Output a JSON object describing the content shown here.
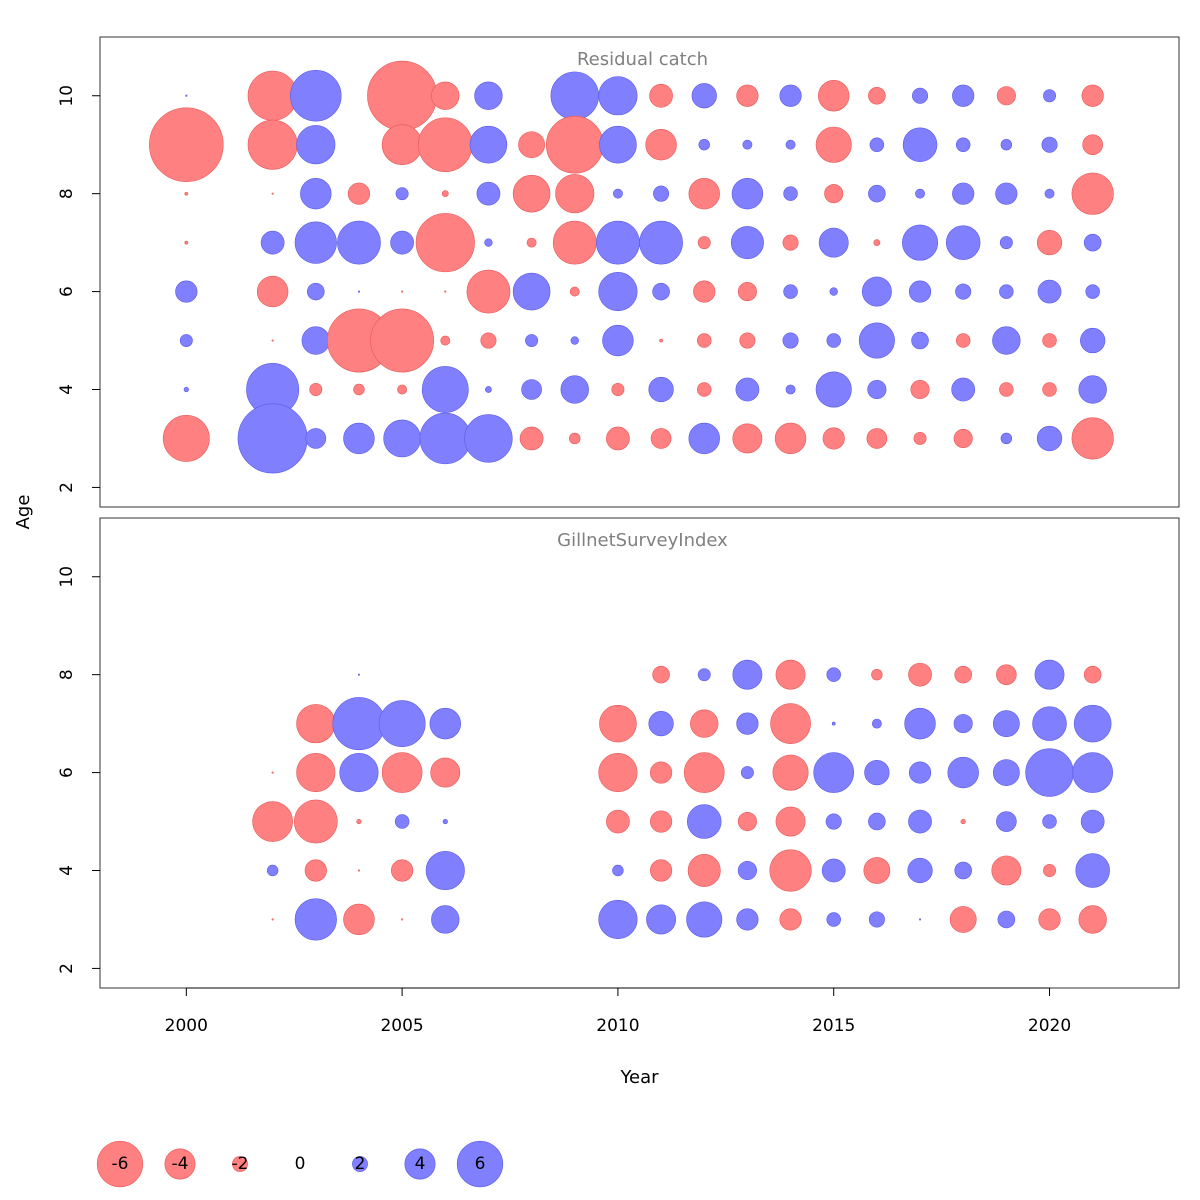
{
  "chart_data": {
    "type": "scatter",
    "subtype": "bubble",
    "xlabel": "Year",
    "ylabel": "Age",
    "xlim": [
      1998,
      2023
    ],
    "x_ticks": [
      2000,
      2005,
      2010,
      2015,
      2020
    ],
    "y_ticks": [
      2,
      4,
      6,
      8,
      10
    ],
    "ylim": [
      1.6,
      11.2
    ],
    "colors": {
      "positive": "#8080ff",
      "negative": "#ff8080",
      "positive_stroke": "#5a5ae6",
      "negative_stroke": "#e65a5a"
    },
    "legend": {
      "placement": "bottom-left",
      "values": [
        -6,
        -4,
        -2,
        0,
        2,
        4,
        6
      ]
    },
    "years": [
      2000,
      2001,
      2002,
      2003,
      2004,
      2005,
      2006,
      2007,
      2008,
      2009,
      2010,
      2011,
      2012,
      2013,
      2014,
      2015,
      2016,
      2017,
      2018,
      2019,
      2020,
      2021
    ],
    "panels": [
      {
        "title": "Residual catch",
        "ages": [
          3,
          4,
          5,
          6,
          7,
          8,
          9,
          10
        ],
        "rows": {
          "10": [
            0.1,
            null,
            -3.2,
            3.3,
            null,
            -4.5,
            -1.8,
            1.8,
            null,
            3.1,
            2.5,
            -1.5,
            1.6,
            -1.4,
            1.4,
            -2.0,
            -1.1,
            1.0,
            1.4,
            -1.2,
            0.8,
            -1.4
          ],
          "9": [
            -4.8,
            null,
            -3.2,
            2.5,
            null,
            -2.6,
            -3.5,
            2.4,
            -1.7,
            -3.7,
            2.4,
            -2.0,
            0.7,
            0.6,
            0.6,
            -2.3,
            0.9,
            2.2,
            0.9,
            0.7,
            1.0,
            -1.3
          ],
          "8": [
            -0.2,
            null,
            -0.1,
            2.0,
            -1.4,
            0.8,
            -0.4,
            1.5,
            -2.4,
            -2.5,
            0.6,
            1.0,
            -2.0,
            2.0,
            0.9,
            -1.2,
            1.1,
            0.6,
            1.4,
            1.4,
            0.6,
            -2.7
          ],
          "7": [
            -0.2,
            null,
            1.5,
            2.7,
            2.8,
            1.5,
            -3.8,
            0.5,
            -0.6,
            -2.8,
            2.8,
            2.8,
            -0.8,
            2.1,
            -1.0,
            1.9,
            -0.4,
            2.3,
            2.2,
            0.8,
            -1.6,
            1.1
          ],
          "6": [
            1.4,
            null,
            -2.0,
            1.1,
            0.1,
            -0.1,
            -0.1,
            -2.8,
            2.4,
            -0.6,
            2.5,
            1.1,
            -1.4,
            -1.2,
            0.9,
            0.5,
            1.9,
            1.4,
            1.0,
            0.9,
            1.5,
            0.9
          ],
          "5": [
            0.8,
            null,
            -0.1,
            1.8,
            -4.1,
            -4.1,
            -0.6,
            -1.0,
            0.8,
            0.5,
            2.0,
            -0.2,
            -0.9,
            -1.0,
            1.0,
            0.9,
            2.3,
            1.1,
            -0.9,
            1.8,
            -0.9,
            1.6
          ],
          "4": [
            0.3,
            null,
            3.4,
            -0.8,
            -0.7,
            -0.6,
            3.0,
            0.4,
            1.3,
            1.8,
            -0.8,
            1.6,
            -0.9,
            1.5,
            0.6,
            2.3,
            1.2,
            -1.2,
            1.5,
            -0.9,
            -0.9,
            1.8
          ],
          "3": [
            -3.0,
            null,
            4.5,
            1.3,
            2.0,
            2.4,
            3.3,
            3.1,
            -1.5,
            -0.7,
            -1.5,
            -1.3,
            2.0,
            -1.9,
            -2.0,
            -1.4,
            -1.3,
            -0.8,
            -1.2,
            0.7,
            1.6,
            -2.7
          ]
        }
      },
      {
        "title": "GillnetSurveyIndex",
        "ages": [
          3,
          4,
          5,
          6,
          7,
          8
        ],
        "rows": {
          "8": [
            null,
            null,
            null,
            null,
            0.1,
            null,
            null,
            null,
            null,
            null,
            null,
            -1.1,
            0.8,
            1.9,
            -1.9,
            0.9,
            -0.7,
            -1.5,
            -1.1,
            -1.3,
            1.9,
            -1.1
          ],
          "7": [
            null,
            null,
            null,
            -2.5,
            3.4,
            3.0,
            2.0,
            null,
            null,
            null,
            -2.4,
            1.6,
            -1.8,
            1.4,
            -2.6,
            0.2,
            0.6,
            2.0,
            1.2,
            1.7,
            2.2,
            2.4
          ],
          "6": [
            null,
            null,
            -0.1,
            -2.5,
            2.5,
            -2.6,
            -1.9,
            null,
            null,
            null,
            -2.5,
            -1.4,
            -2.6,
            0.8,
            -2.3,
            2.6,
            1.6,
            1.4,
            2.0,
            1.7,
            3.1,
            2.6
          ],
          "5": [
            null,
            null,
            -2.6,
            -2.8,
            -0.3,
            0.9,
            0.3,
            null,
            null,
            null,
            -1.5,
            -1.4,
            2.2,
            -1.2,
            -1.9,
            1.0,
            1.1,
            1.5,
            -0.3,
            1.3,
            0.9,
            1.5
          ],
          "4": [
            null,
            null,
            0.7,
            -1.4,
            -0.1,
            -1.4,
            2.5,
            null,
            null,
            null,
            0.7,
            -1.4,
            -2.1,
            1.2,
            -2.7,
            1.5,
            -1.7,
            1.6,
            1.1,
            -1.9,
            -0.8,
            2.2
          ],
          "3": [
            null,
            null,
            -0.1,
            2.7,
            -2.0,
            -0.1,
            1.8,
            null,
            null,
            null,
            2.5,
            1.9,
            2.3,
            1.4,
            -1.4,
            0.9,
            1.0,
            0.1,
            -1.7,
            1.1,
            -1.4,
            -1.8
          ]
        }
      }
    ]
  }
}
